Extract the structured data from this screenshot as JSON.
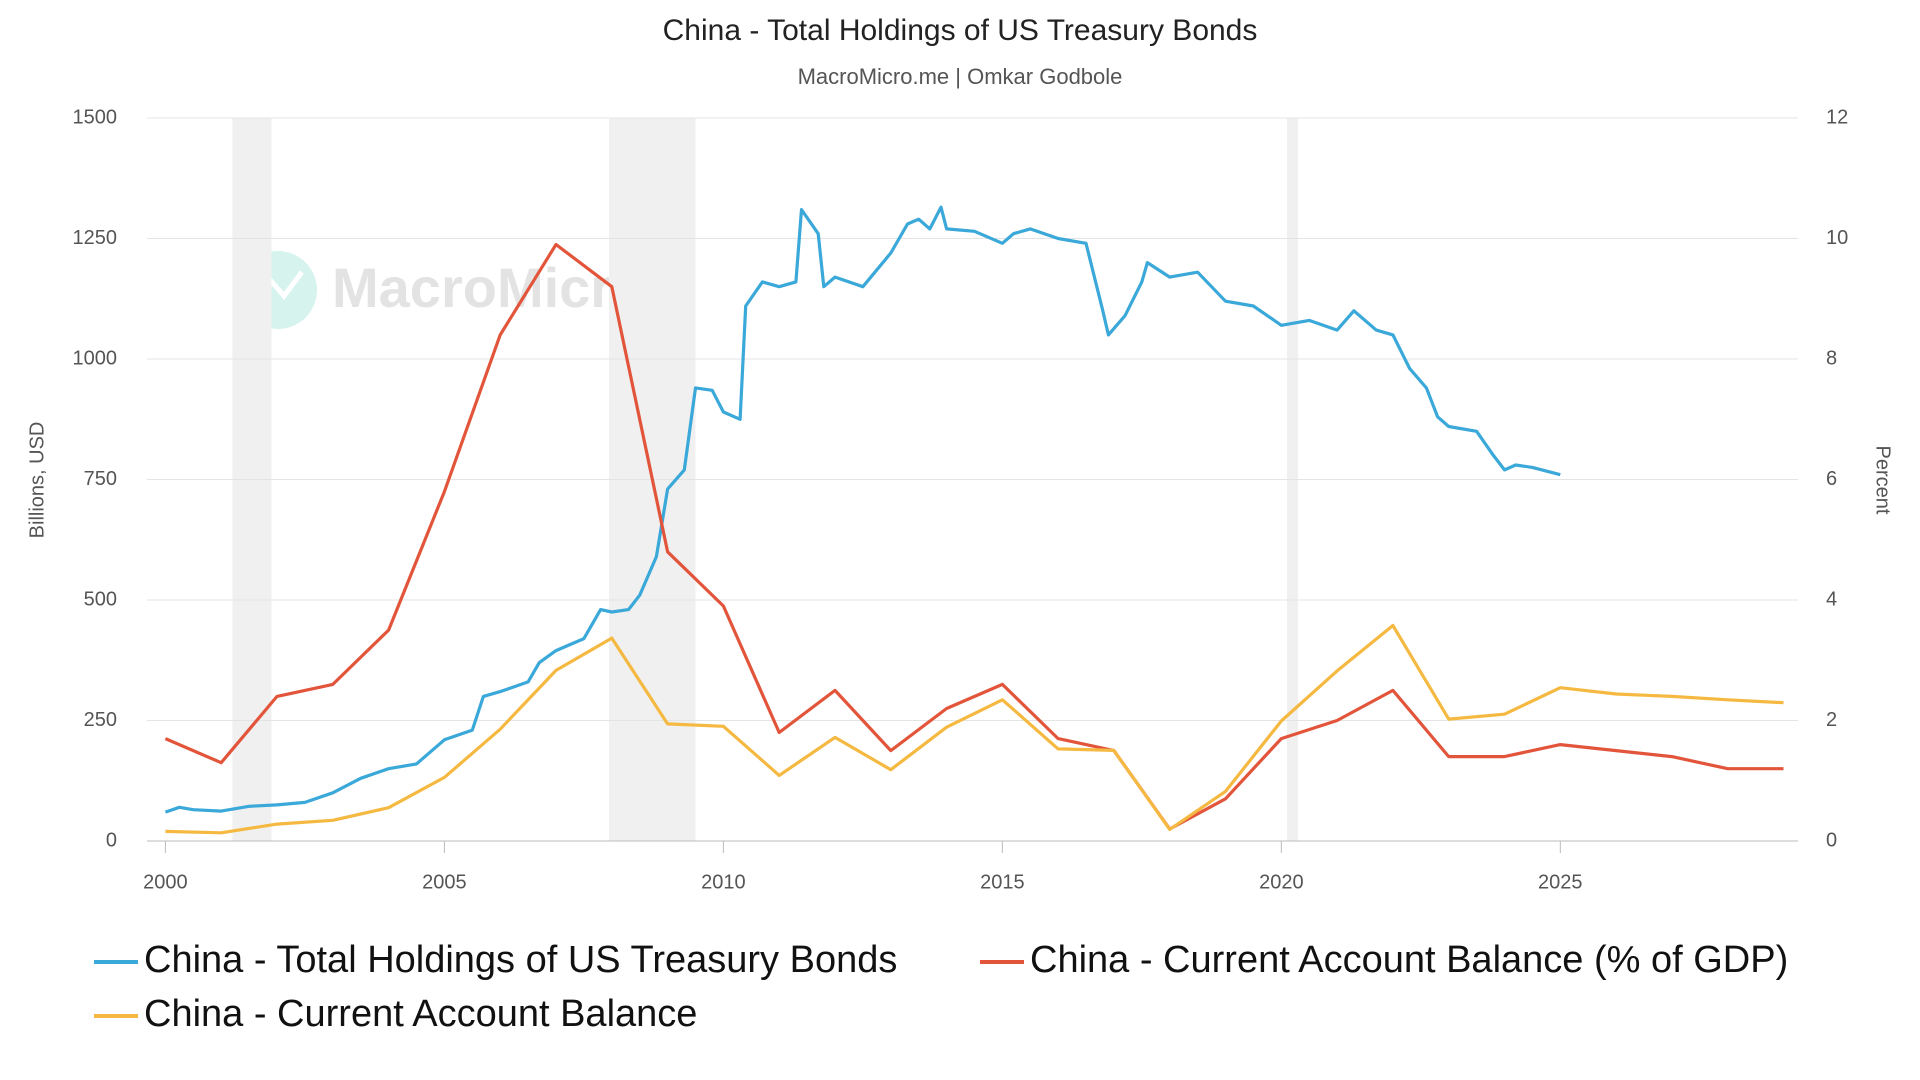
{
  "chart_data": {
    "type": "line",
    "title": "China - Total Holdings of US Treasury Bonds",
    "subtitle": "MacroMicro.me | Omkar Godbole",
    "watermark": "MacroMicro",
    "ylabel": "Billions, USD",
    "y2label": "Percent",
    "xlim": [
      1999.67,
      2029.26
    ],
    "xticks": [
      2000,
      2005,
      2010,
      2015,
      2020,
      2025
    ],
    "ylim": [
      0,
      1500
    ],
    "yticks": [
      0,
      250,
      500,
      750,
      1000,
      1250,
      1500
    ],
    "y2lim": [
      0,
      12
    ],
    "y2ticks": [
      0,
      2,
      4,
      6,
      8,
      10,
      12
    ],
    "grid": true,
    "legend": "bottom",
    "recessions": [
      [
        2001.2,
        2001.9
      ],
      [
        2007.95,
        2009.5
      ],
      [
        2020.1,
        2020.3
      ]
    ],
    "series": [
      {
        "name": "China - Total Holdings of US Treasury Bonds",
        "color": "#3aa8d8",
        "x": [
          2000.0,
          2000.25,
          2000.5,
          2001.0,
          2001.5,
          2002.0,
          2002.5,
          2003.0,
          2003.5,
          2004.0,
          2004.5,
          2005.0,
          2005.5,
          2005.7,
          2006.0,
          2006.5,
          2006.7,
          2007.0,
          2007.5,
          2007.8,
          2008.0,
          2008.3,
          2008.5,
          2008.8,
          2009.0,
          2009.3,
          2009.5,
          2009.8,
          2010.0,
          2010.3,
          2010.4,
          2010.7,
          2011.0,
          2011.3,
          2011.4,
          2011.7,
          2011.8,
          2012.0,
          2012.5,
          2013.0,
          2013.3,
          2013.5,
          2013.7,
          2013.9,
          2014.0,
          2014.5,
          2015.0,
          2015.2,
          2015.5,
          2016.0,
          2016.5,
          2016.8,
          2016.9,
          2017.2,
          2017.5,
          2017.6,
          2018.0,
          2018.5,
          2019.0,
          2019.5,
          2020.0,
          2020.5,
          2021.0,
          2021.3,
          2021.7,
          2022.0,
          2022.3,
          2022.6,
          2022.8,
          2023.0,
          2023.5,
          2023.8,
          2024.0,
          2024.2,
          2024.5,
          2025.0
        ],
        "values": [
          60,
          70,
          65,
          62,
          72,
          75,
          80,
          100,
          130,
          150,
          160,
          210,
          230,
          300,
          310,
          330,
          370,
          395,
          420,
          480,
          475,
          480,
          510,
          590,
          730,
          770,
          940,
          935,
          890,
          875,
          1110,
          1160,
          1150,
          1160,
          1310,
          1260,
          1150,
          1170,
          1150,
          1220,
          1280,
          1290,
          1270,
          1315,
          1270,
          1265,
          1240,
          1260,
          1270,
          1250,
          1240,
          1100,
          1050,
          1090,
          1160,
          1200,
          1170,
          1180,
          1120,
          1110,
          1070,
          1080,
          1060,
          1100,
          1060,
          1050,
          980,
          940,
          880,
          860,
          850,
          800,
          770,
          780,
          775,
          760
        ]
      },
      {
        "name": "China - Current Account Balance (% of GDP)",
        "color": "#e2553b",
        "axis": "y2",
        "x": [
          2000,
          2001,
          2002,
          2003,
          2004,
          2005,
          2006,
          2007,
          2008,
          2009,
          2010,
          2011,
          2012,
          2013,
          2014,
          2015,
          2016,
          2017,
          2018,
          2019,
          2020,
          2021,
          2022,
          2023,
          2024,
          2025,
          2026,
          2027,
          2028,
          2029
        ],
        "values": [
          1.7,
          1.3,
          2.4,
          2.6,
          3.5,
          5.8,
          8.4,
          9.9,
          9.2,
          4.8,
          3.9,
          1.8,
          2.5,
          1.5,
          2.2,
          2.6,
          1.7,
          1.5,
          0.2,
          0.7,
          1.7,
          2.0,
          2.5,
          1.4,
          1.4,
          1.6,
          1.5,
          1.4,
          1.2,
          1.2
        ]
      },
      {
        "name": "China - Current Account Balance",
        "color": "#f5b942",
        "x": [
          2000,
          2001,
          2002,
          2003,
          2004,
          2005,
          2006,
          2007,
          2008,
          2009,
          2010,
          2011,
          2012,
          2013,
          2014,
          2015,
          2016,
          2017,
          2018,
          2019,
          2020,
          2021,
          2022,
          2023,
          2024,
          2025,
          2026,
          2027,
          2028,
          2029
        ],
        "values": [
          20,
          17,
          35,
          43,
          69,
          132,
          232,
          354,
          421,
          243,
          238,
          136,
          215,
          148,
          236,
          293,
          191,
          188,
          24,
          103,
          249,
          353,
          447,
          253,
          263,
          318,
          305,
          300,
          293,
          287
        ]
      }
    ]
  }
}
